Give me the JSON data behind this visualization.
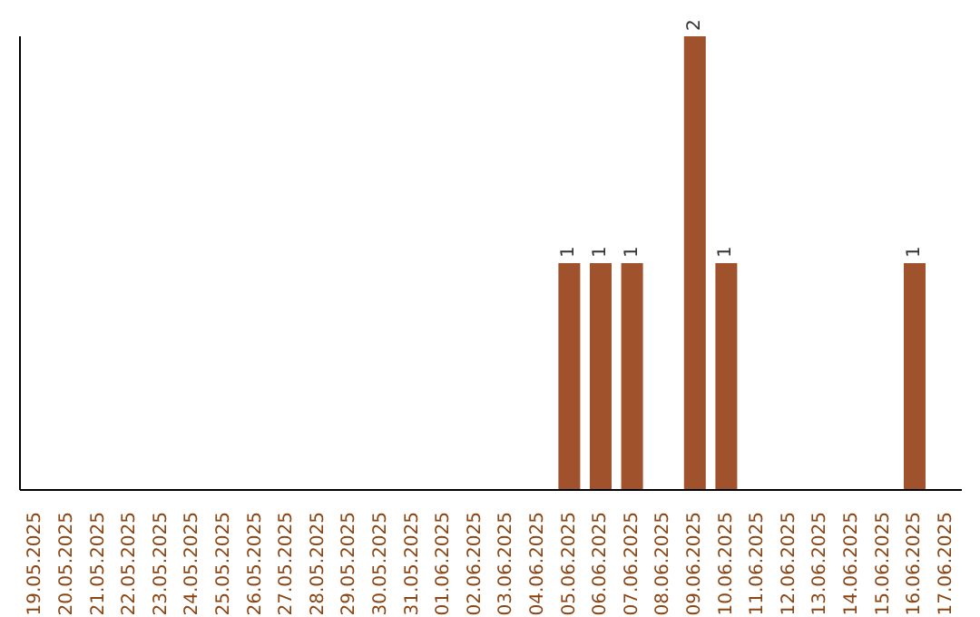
{
  "chart_data": {
    "type": "bar",
    "categories": [
      "19.05.2025",
      "20.05.2025",
      "21.05.2025",
      "22.05.2025",
      "23.05.2025",
      "24.05.2025",
      "25.05.2025",
      "26.05.2025",
      "27.05.2025",
      "28.05.2025",
      "29.05.2025",
      "30.05.2025",
      "31.05.2025",
      "01.06.2025",
      "02.06.2025",
      "03.06.2025",
      "04.06.2025",
      "05.06.2025",
      "06.06.2025",
      "07.06.2025",
      "08.06.2025",
      "09.06.2025",
      "10.06.2025",
      "11.06.2025",
      "12.06.2025",
      "13.06.2025",
      "14.06.2025",
      "15.06.2025",
      "16.06.2025",
      "17.06.2025"
    ],
    "values": [
      null,
      null,
      null,
      null,
      null,
      null,
      null,
      null,
      null,
      null,
      null,
      null,
      null,
      null,
      null,
      null,
      null,
      1,
      1,
      1,
      null,
      2,
      1,
      null,
      null,
      null,
      null,
      null,
      1,
      null
    ],
    "color": "#a0522d",
    "data_labels": true,
    "tick_labels": "x",
    "grid": false,
    "legend": false
  }
}
